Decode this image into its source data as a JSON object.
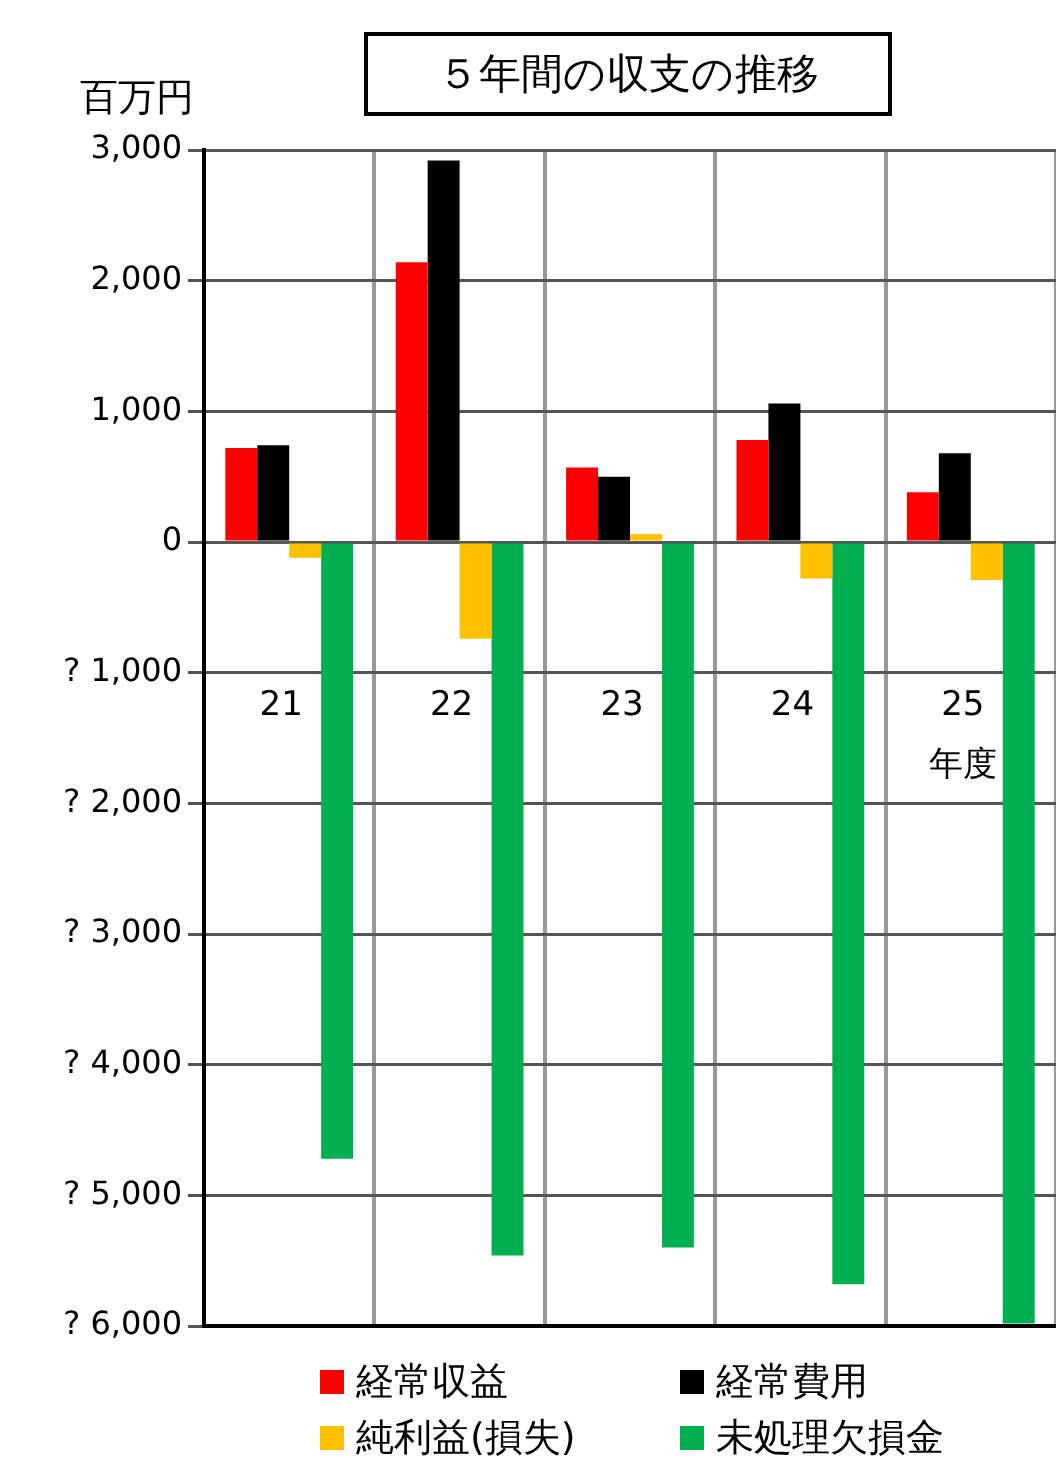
{
  "chart_data": {
    "type": "bar",
    "title": "５年間の収支の推移",
    "ylabel": "百万円",
    "xlabel": "年度",
    "categories": [
      "21",
      "22",
      "23",
      "24",
      "25"
    ],
    "series": [
      {
        "name": "経常収益",
        "color": "#ff0000",
        "values": [
          720,
          2140,
          570,
          780,
          380
        ]
      },
      {
        "name": "経常費用",
        "color": "#000000",
        "values": [
          740,
          2920,
          500,
          1060,
          680
        ]
      },
      {
        "name": "純利益(損失)",
        "color": "#ffc000",
        "values": [
          -120,
          -740,
          60,
          -280,
          -290
        ]
      },
      {
        "name": "未処理欠損金",
        "color": "#00b050",
        "values": [
          -4720,
          -5460,
          -5400,
          -5680,
          -5980
        ]
      }
    ],
    "ylim": [
      -6000,
      3000
    ],
    "yticks": [
      {
        "value": -6000,
        "label": "? 6,000"
      },
      {
        "value": -5000,
        "label": "? 5,000"
      },
      {
        "value": -4000,
        "label": "? 4,000"
      },
      {
        "value": -3000,
        "label": "? 3,000"
      },
      {
        "value": -2000,
        "label": "? 2,000"
      },
      {
        "value": -1000,
        "label": "? 1,000"
      },
      0,
      "1,000",
      "2,000",
      "3,000"
    ],
    "grid": true,
    "legend": "bottom"
  }
}
